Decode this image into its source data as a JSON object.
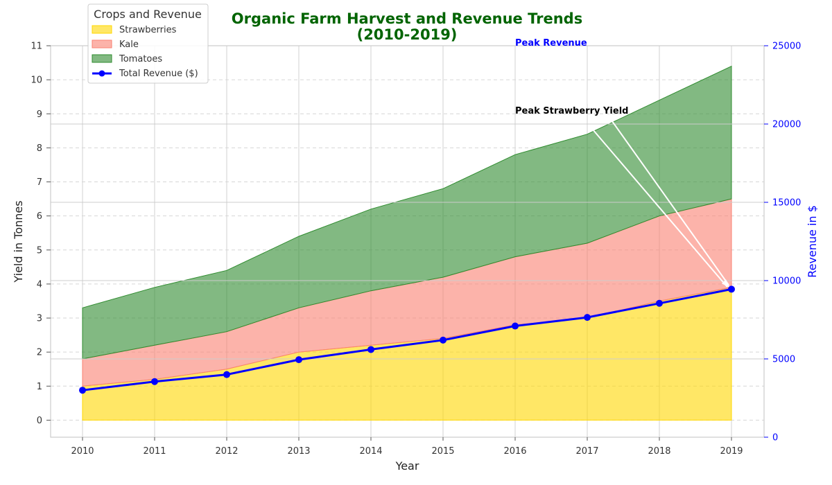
{
  "chart_data": {
    "type": "area",
    "title": "Organic Farm Harvest and Revenue Trends",
    "subtitle": "(2010-2019)",
    "xlabel": "Year",
    "ylabel": "Yield in Tonnes",
    "ylabel_right": "Revenue in $",
    "x": [
      2010,
      2011,
      2012,
      2013,
      2014,
      2015,
      2016,
      2017,
      2018,
      2019
    ],
    "ylim": [
      -0.5,
      11
    ],
    "ylim_right": [
      0,
      25000
    ],
    "y_ticks": [
      0,
      1,
      2,
      3,
      4,
      5,
      6,
      7,
      8,
      9,
      10,
      11
    ],
    "y_right_ticks": [
      0,
      5000,
      10000,
      15000,
      20000,
      25000
    ],
    "grid": true,
    "stacked": true,
    "series": [
      {
        "name": "Strawberries",
        "color": "#ffd700",
        "values": [
          1.0,
          1.2,
          1.5,
          2.0,
          2.2,
          2.4,
          2.8,
          3.0,
          3.5,
          3.9
        ]
      },
      {
        "name": "Kale",
        "color": "#fa8072",
        "values": [
          0.8,
          1.0,
          1.1,
          1.3,
          1.6,
          1.8,
          2.0,
          2.2,
          2.5,
          2.6
        ]
      },
      {
        "name": "Tomatoes",
        "color": "#2e8b2e",
        "values": [
          1.5,
          1.7,
          1.8,
          2.1,
          2.4,
          2.6,
          3.0,
          3.2,
          3.4,
          3.9
        ]
      }
    ],
    "revenue": {
      "name": "Total Revenue ($)",
      "color": "#0000ff",
      "values": [
        3000,
        3550,
        4000,
        4950,
        5600,
        6200,
        7100,
        7650,
        8550,
        9450
      ]
    },
    "legend_title": "Crops and Revenue",
    "legend_position": "upper-left",
    "annotations": [
      {
        "text": "Peak Revenue",
        "color": "#0000ff",
        "target_x": 2019,
        "target_y": 3.85
      },
      {
        "text": "Peak Strawberry Yield",
        "color": "#000000",
        "target_x": 2019,
        "target_y": 3.85
      }
    ]
  }
}
